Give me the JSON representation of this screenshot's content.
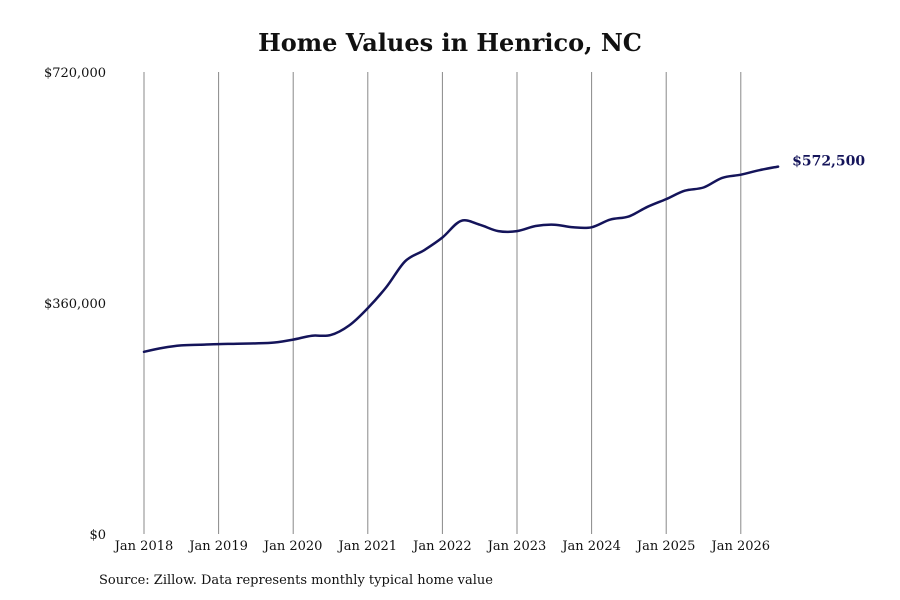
{
  "chart_data": {
    "type": "line",
    "title": "Home Values in Henrico, NC",
    "xlabel": "",
    "ylabel": "",
    "x_ticks": [
      "Jan 2018",
      "Jan 2019",
      "Jan 2020",
      "Jan 2021",
      "Jan 2022",
      "Jan 2023",
      "Jan 2024",
      "Jan 2025",
      "Jan 2026"
    ],
    "y_ticks": [
      "$0",
      "$360,000",
      "$720,000"
    ],
    "ylim": [
      0,
      720000
    ],
    "xlim": [
      "2018-01",
      "2026-07"
    ],
    "grid": {
      "vertical": true,
      "horizontal": false
    },
    "line_color": "#14145a",
    "grid_color": "#888888",
    "end_label": "$572,500",
    "series": [
      {
        "x": [
          "2018-01",
          "2018-04",
          "2018-07",
          "2018-10",
          "2019-01",
          "2019-04",
          "2019-07",
          "2019-10",
          "2020-01",
          "2020-04",
          "2020-07",
          "2020-10",
          "2021-01",
          "2021-04",
          "2021-07",
          "2021-10",
          "2022-01",
          "2022-04",
          "2022-07",
          "2022-10",
          "2023-01",
          "2023-04",
          "2023-07",
          "2023-10",
          "2024-01",
          "2024-04",
          "2024-07",
          "2024-10",
          "2025-01",
          "2025-04",
          "2025-07",
          "2025-10",
          "2026-01",
          "2026-04",
          "2026-07"
        ],
        "values": [
          284000,
          290000,
          294000,
          295000,
          296000,
          296500,
          297000,
          298500,
          303000,
          309000,
          310000,
          325000,
          352000,
          385000,
          425000,
          442000,
          462000,
          488000,
          482000,
          472000,
          472000,
          480000,
          482000,
          478000,
          478000,
          490000,
          495000,
          510000,
          522000,
          535000,
          540000,
          555000,
          560000,
          567000,
          572500
        ]
      }
    ]
  },
  "source_note": "Source: Zillow. Data represents monthly typical home value"
}
